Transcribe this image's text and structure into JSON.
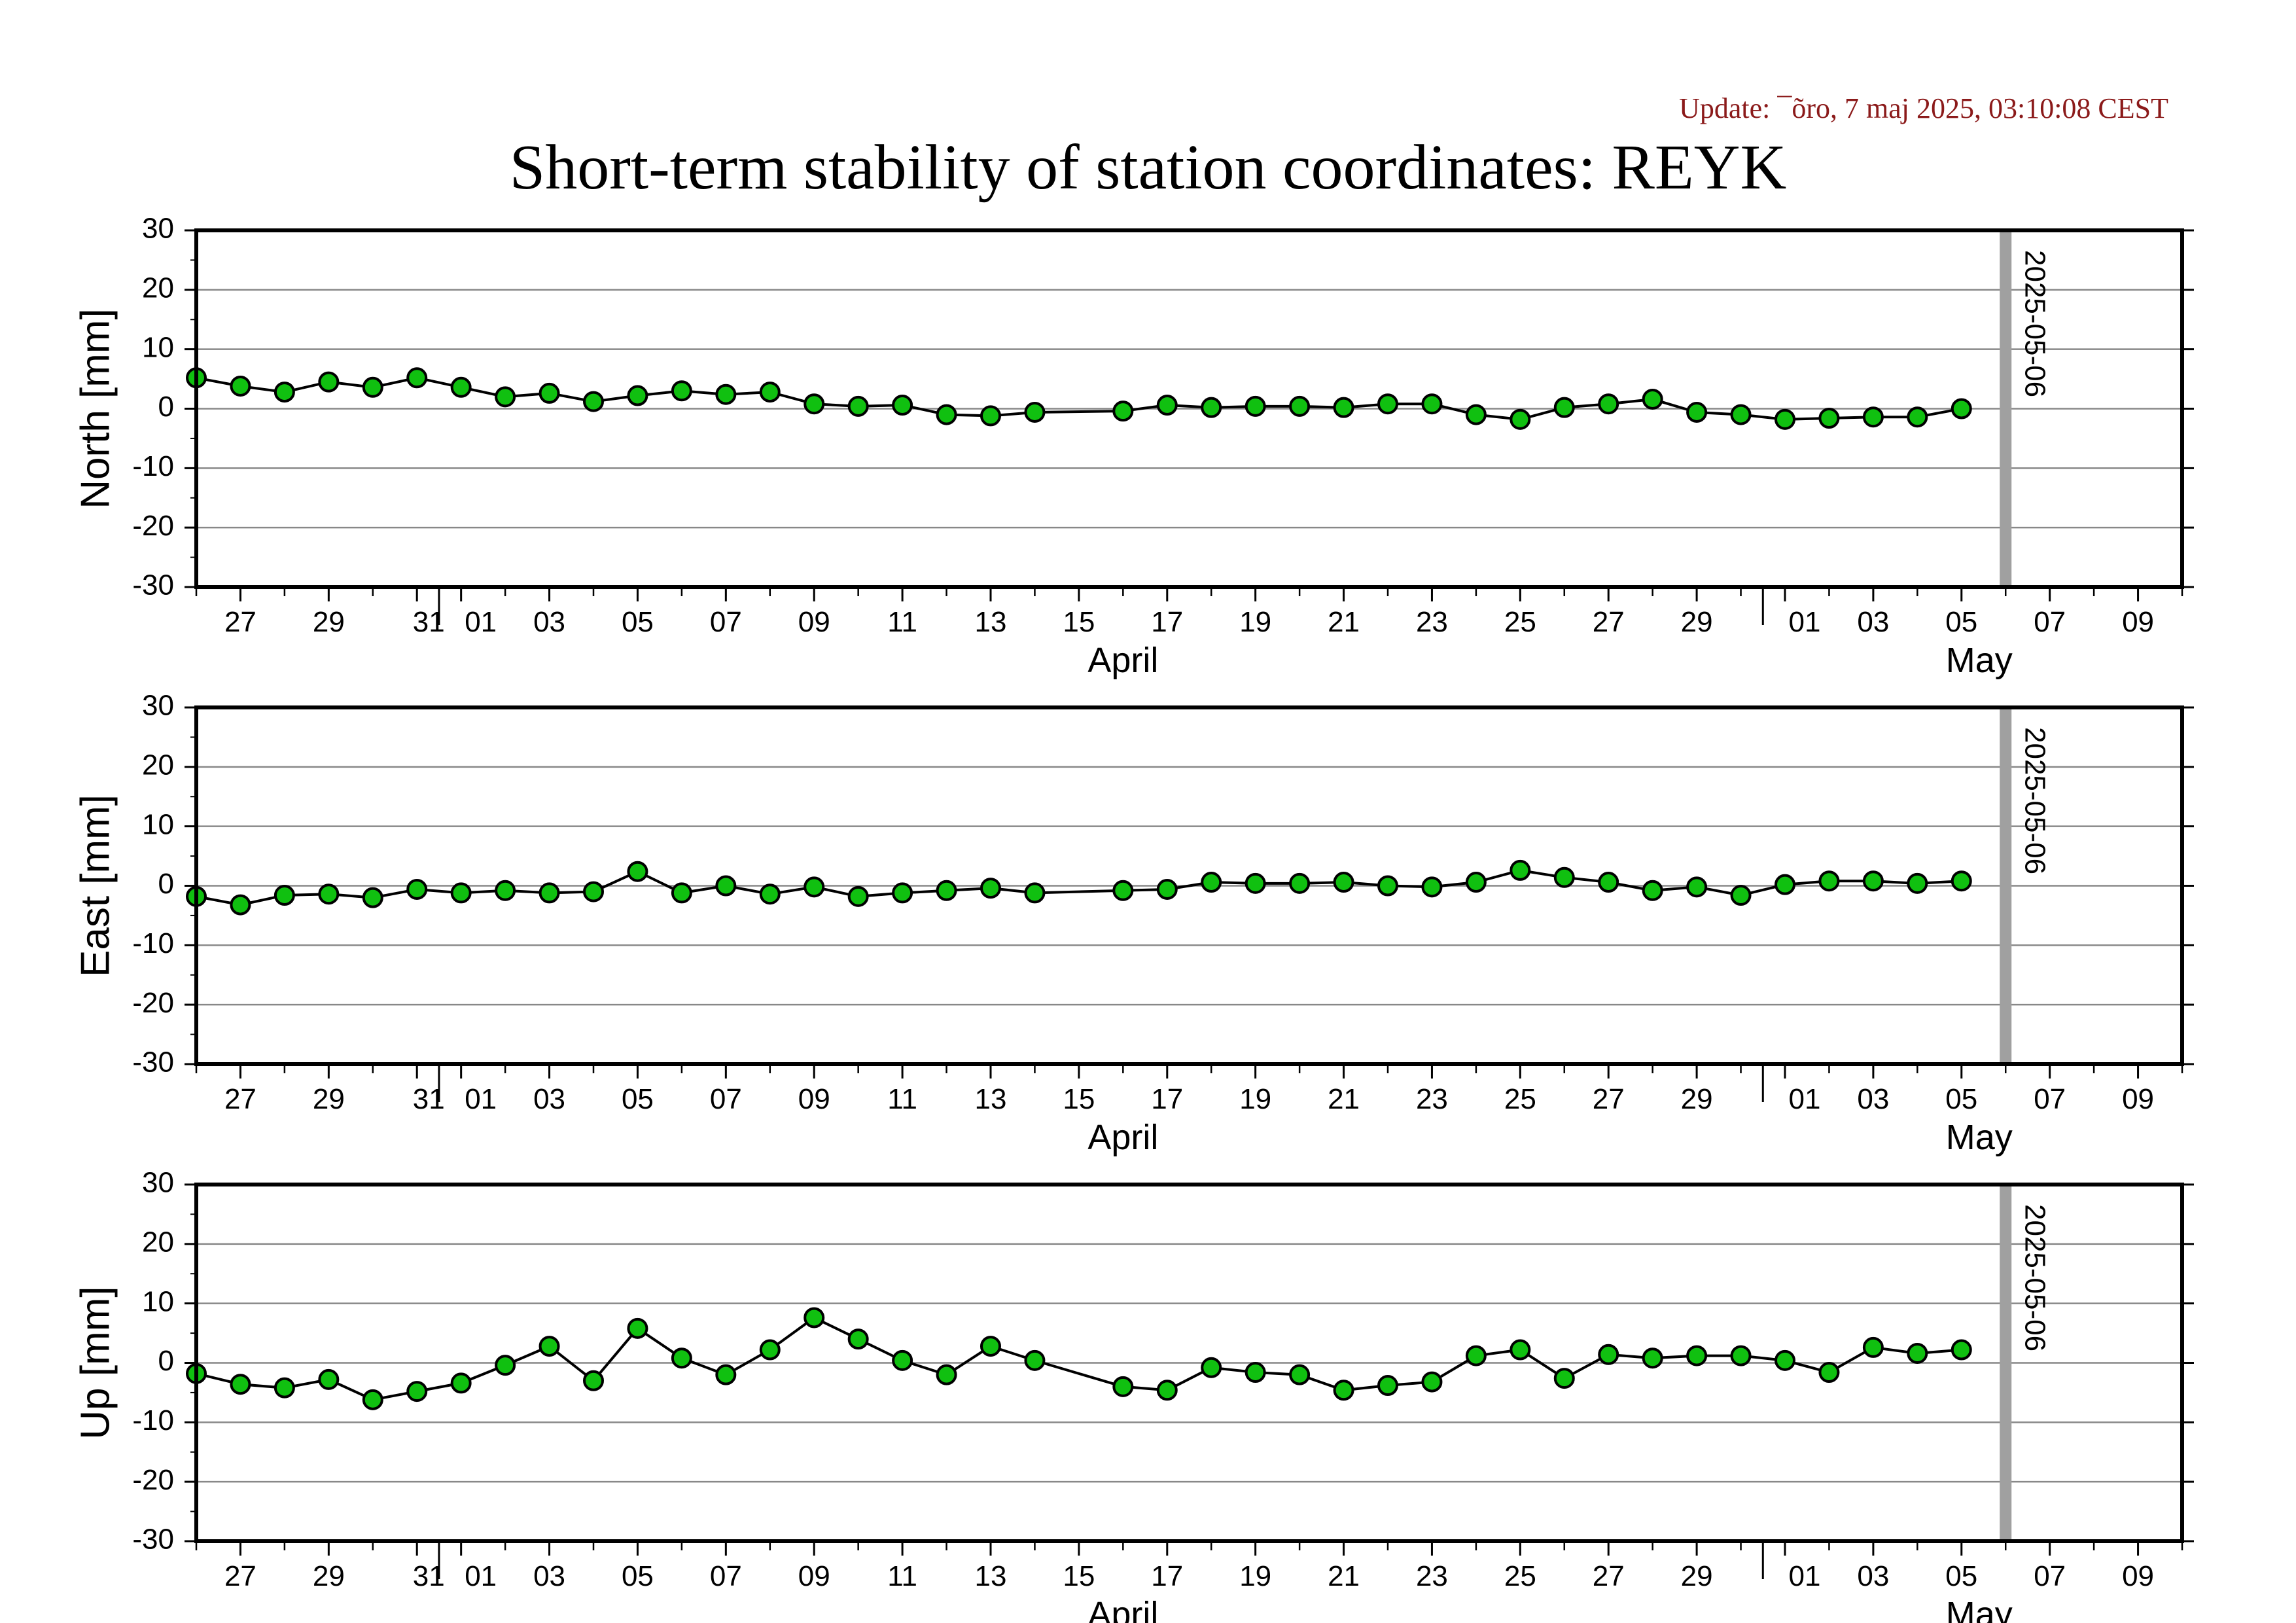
{
  "update": "Update: ¯õro, 7 maj 2025, 03:10:08 CEST",
  "title": "Short-term stability of station coordinates: REYK",
  "chart_data": [
    {
      "type": "line",
      "ylabel": "North [mm]",
      "ylim": [
        -30,
        30
      ],
      "yticks": [
        30,
        20,
        10,
        0,
        -10,
        -20,
        -30
      ],
      "xlim": [
        "2025-03-26",
        "2025-05-10"
      ],
      "xticks": [
        "27",
        "29",
        "31",
        "01",
        "03",
        "05",
        "07",
        "09",
        "11",
        "13",
        "15",
        "17",
        "19",
        "21",
        "23",
        "25",
        "27",
        "29",
        "01",
        "03",
        "05",
        "07",
        "09"
      ],
      "month_labels": [
        "April",
        "May"
      ],
      "marker_line_label": "2025-05-06",
      "grid": true,
      "series": [
        {
          "marker_color": "#10c010",
          "x": [
            "2025-03-26",
            "2025-03-27",
            "2025-03-28",
            "2025-03-29",
            "2025-03-30",
            "2025-03-31",
            "2025-04-01",
            "2025-04-02",
            "2025-04-03",
            "2025-04-04",
            "2025-04-05",
            "2025-04-06",
            "2025-04-07",
            "2025-04-08",
            "2025-04-09",
            "2025-04-10",
            "2025-04-11",
            "2025-04-12",
            "2025-04-13",
            "2025-04-14",
            "2025-04-16",
            "2025-04-17",
            "2025-04-18",
            "2025-04-19",
            "2025-04-20",
            "2025-04-21",
            "2025-04-22",
            "2025-04-23",
            "2025-04-24",
            "2025-04-25",
            "2025-04-26",
            "2025-04-27",
            "2025-04-28",
            "2025-04-29",
            "2025-04-30",
            "2025-05-01",
            "2025-05-02",
            "2025-05-03",
            "2025-05-04",
            "2025-05-05"
          ],
          "values": [
            5.2,
            3.8,
            2.8,
            4.5,
            3.6,
            5.2,
            3.6,
            2.0,
            2.6,
            1.2,
            2.2,
            3.0,
            2.4,
            2.8,
            0.8,
            0.4,
            0.6,
            -1.0,
            -1.2,
            -0.6,
            -0.4,
            0.6,
            0.2,
            0.4,
            0.4,
            0.2,
            0.8,
            0.8,
            -1.0,
            -1.8,
            0.2,
            0.8,
            1.6,
            -0.6,
            -1.0,
            -1.8,
            -1.6,
            -1.4,
            -1.4,
            0.0
          ]
        }
      ]
    },
    {
      "type": "line",
      "ylabel": "East [mm]",
      "ylim": [
        -30,
        30
      ],
      "yticks": [
        30,
        20,
        10,
        0,
        -10,
        -20,
        -30
      ],
      "xlim": [
        "2025-03-26",
        "2025-05-10"
      ],
      "xticks": [
        "27",
        "29",
        "31",
        "01",
        "03",
        "05",
        "07",
        "09",
        "11",
        "13",
        "15",
        "17",
        "19",
        "21",
        "23",
        "25",
        "27",
        "29",
        "01",
        "03",
        "05",
        "07",
        "09"
      ],
      "month_labels": [
        "April",
        "May"
      ],
      "marker_line_label": "2025-05-06",
      "grid": true,
      "series": [
        {
          "marker_color": "#10c010",
          "x": [
            "2025-03-26",
            "2025-03-27",
            "2025-03-28",
            "2025-03-29",
            "2025-03-30",
            "2025-03-31",
            "2025-04-01",
            "2025-04-02",
            "2025-04-03",
            "2025-04-04",
            "2025-04-05",
            "2025-04-06",
            "2025-04-07",
            "2025-04-08",
            "2025-04-09",
            "2025-04-10",
            "2025-04-11",
            "2025-04-12",
            "2025-04-13",
            "2025-04-14",
            "2025-04-16",
            "2025-04-17",
            "2025-04-18",
            "2025-04-19",
            "2025-04-20",
            "2025-04-21",
            "2025-04-22",
            "2025-04-23",
            "2025-04-24",
            "2025-04-25",
            "2025-04-26",
            "2025-04-27",
            "2025-04-28",
            "2025-04-29",
            "2025-04-30",
            "2025-05-01",
            "2025-05-02",
            "2025-05-03",
            "2025-05-04",
            "2025-05-05"
          ],
          "values": [
            -1.8,
            -3.2,
            -1.6,
            -1.4,
            -2.0,
            -0.6,
            -1.2,
            -0.8,
            -1.2,
            -1.0,
            2.4,
            -1.2,
            0.0,
            -1.4,
            -0.2,
            -1.8,
            -1.2,
            -0.8,
            -0.4,
            -1.2,
            -0.8,
            -0.6,
            0.6,
            0.4,
            0.4,
            0.6,
            0.0,
            -0.2,
            0.6,
            2.6,
            1.4,
            0.6,
            -0.8,
            -0.2,
            -1.6,
            0.2,
            0.8,
            0.8,
            0.4,
            0.8
          ]
        }
      ]
    },
    {
      "type": "line",
      "ylabel": "Up [mm]",
      "ylim": [
        -30,
        30
      ],
      "yticks": [
        30,
        20,
        10,
        0,
        -10,
        -20,
        -30
      ],
      "xlim": [
        "2025-03-26",
        "2025-05-10"
      ],
      "xticks": [
        "27",
        "29",
        "31",
        "01",
        "03",
        "05",
        "07",
        "09",
        "11",
        "13",
        "15",
        "17",
        "19",
        "21",
        "23",
        "25",
        "27",
        "29",
        "01",
        "03",
        "05",
        "07",
        "09"
      ],
      "month_labels": [
        "April",
        "May"
      ],
      "marker_line_label": "2025-05-06",
      "grid": true,
      "series": [
        {
          "marker_color": "#10c010",
          "x": [
            "2025-03-26",
            "2025-03-27",
            "2025-03-28",
            "2025-03-29",
            "2025-03-30",
            "2025-03-31",
            "2025-04-01",
            "2025-04-02",
            "2025-04-03",
            "2025-04-04",
            "2025-04-05",
            "2025-04-06",
            "2025-04-07",
            "2025-04-08",
            "2025-04-09",
            "2025-04-10",
            "2025-04-11",
            "2025-04-12",
            "2025-04-13",
            "2025-04-14",
            "2025-04-16",
            "2025-04-17",
            "2025-04-18",
            "2025-04-19",
            "2025-04-20",
            "2025-04-21",
            "2025-04-22",
            "2025-04-23",
            "2025-04-24",
            "2025-04-25",
            "2025-04-26",
            "2025-04-27",
            "2025-04-28",
            "2025-04-29",
            "2025-04-30",
            "2025-05-01",
            "2025-05-02",
            "2025-05-03",
            "2025-05-04",
            "2025-05-05"
          ],
          "values": [
            -1.8,
            -3.6,
            -4.2,
            -2.8,
            -6.2,
            -4.8,
            -3.4,
            -0.4,
            2.8,
            -3.0,
            5.8,
            0.8,
            -2.0,
            2.2,
            7.6,
            4.0,
            0.4,
            -2.0,
            2.8,
            0.4,
            -4.0,
            -4.6,
            -0.8,
            -1.6,
            -2.0,
            -4.6,
            -3.8,
            -3.2,
            1.2,
            2.2,
            -2.6,
            1.4,
            0.8,
            1.2,
            1.2,
            0.4,
            -1.6,
            2.6,
            1.6,
            2.2
          ]
        }
      ]
    }
  ]
}
